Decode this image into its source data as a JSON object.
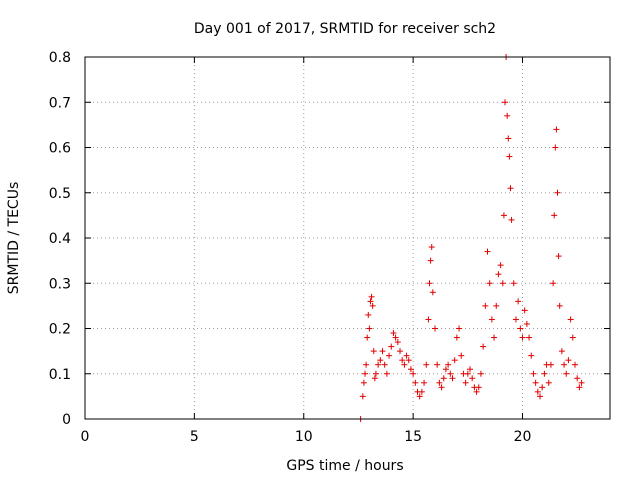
{
  "chart_data": {
    "type": "scatter",
    "title": "Day 001 of 2017, SRMTID for receiver sch2",
    "xlabel": "GPS time / hours",
    "ylabel": "SRMTID / TECUs",
    "xlim": [
      0,
      24
    ],
    "ylim": [
      0,
      0.8
    ],
    "xticks": [
      0,
      5,
      10,
      15,
      20
    ],
    "xtick_labels": [
      "0",
      "5",
      "10",
      "15",
      "20"
    ],
    "yticks": [
      0,
      0.1,
      0.2,
      0.3,
      0.4,
      0.5,
      0.6,
      0.7,
      0.8
    ],
    "ytick_labels": [
      "0",
      "0.1",
      "0.2",
      "0.3",
      "0.4",
      "0.5",
      "0.6",
      "0.7",
      "0.8"
    ],
    "grid": true,
    "marker": "plus",
    "series": [
      {
        "name": "sch2",
        "color": "#e00000",
        "points": [
          [
            12.6,
            0.0
          ],
          [
            12.7,
            0.05
          ],
          [
            12.75,
            0.08
          ],
          [
            12.8,
            0.1
          ],
          [
            12.85,
            0.12
          ],
          [
            12.9,
            0.18
          ],
          [
            12.95,
            0.23
          ],
          [
            13.0,
            0.2
          ],
          [
            13.05,
            0.26
          ],
          [
            13.1,
            0.27
          ],
          [
            13.15,
            0.25
          ],
          [
            13.2,
            0.15
          ],
          [
            13.25,
            0.09
          ],
          [
            13.3,
            0.1
          ],
          [
            13.4,
            0.12
          ],
          [
            13.5,
            0.13
          ],
          [
            13.6,
            0.15
          ],
          [
            13.7,
            0.12
          ],
          [
            13.8,
            0.1
          ],
          [
            13.9,
            0.14
          ],
          [
            14.0,
            0.16
          ],
          [
            14.1,
            0.19
          ],
          [
            14.2,
            0.18
          ],
          [
            14.3,
            0.17
          ],
          [
            14.4,
            0.15
          ],
          [
            14.5,
            0.13
          ],
          [
            14.6,
            0.12
          ],
          [
            14.7,
            0.14
          ],
          [
            14.8,
            0.13
          ],
          [
            14.9,
            0.11
          ],
          [
            15.0,
            0.1
          ],
          [
            15.1,
            0.08
          ],
          [
            15.2,
            0.06
          ],
          [
            15.3,
            0.05
          ],
          [
            15.4,
            0.06
          ],
          [
            15.5,
            0.08
          ],
          [
            15.6,
            0.12
          ],
          [
            15.7,
            0.22
          ],
          [
            15.75,
            0.3
          ],
          [
            15.8,
            0.35
          ],
          [
            15.85,
            0.38
          ],
          [
            15.9,
            0.28
          ],
          [
            16.0,
            0.2
          ],
          [
            16.1,
            0.12
          ],
          [
            16.2,
            0.08
          ],
          [
            16.3,
            0.07
          ],
          [
            16.4,
            0.09
          ],
          [
            16.5,
            0.11
          ],
          [
            16.6,
            0.12
          ],
          [
            16.7,
            0.1
          ],
          [
            16.8,
            0.09
          ],
          [
            16.9,
            0.13
          ],
          [
            17.0,
            0.18
          ],
          [
            17.1,
            0.2
          ],
          [
            17.2,
            0.14
          ],
          [
            17.3,
            0.1
          ],
          [
            17.4,
            0.08
          ],
          [
            17.5,
            0.1
          ],
          [
            17.6,
            0.11
          ],
          [
            17.7,
            0.09
          ],
          [
            17.8,
            0.07
          ],
          [
            17.9,
            0.06
          ],
          [
            18.0,
            0.07
          ],
          [
            18.1,
            0.1
          ],
          [
            18.2,
            0.16
          ],
          [
            18.3,
            0.25
          ],
          [
            18.4,
            0.37
          ],
          [
            18.5,
            0.3
          ],
          [
            18.6,
            0.22
          ],
          [
            18.7,
            0.18
          ],
          [
            18.8,
            0.25
          ],
          [
            18.9,
            0.32
          ],
          [
            19.0,
            0.34
          ],
          [
            19.1,
            0.3
          ],
          [
            19.15,
            0.45
          ],
          [
            19.2,
            0.7
          ],
          [
            19.25,
            0.8
          ],
          [
            19.3,
            0.67
          ],
          [
            19.35,
            0.62
          ],
          [
            19.4,
            0.58
          ],
          [
            19.45,
            0.51
          ],
          [
            19.5,
            0.44
          ],
          [
            19.6,
            0.3
          ],
          [
            19.7,
            0.22
          ],
          [
            19.8,
            0.26
          ],
          [
            19.9,
            0.2
          ],
          [
            20.0,
            0.18
          ],
          [
            20.1,
            0.24
          ],
          [
            20.2,
            0.21
          ],
          [
            20.3,
            0.18
          ],
          [
            20.4,
            0.14
          ],
          [
            20.5,
            0.1
          ],
          [
            20.6,
            0.08
          ],
          [
            20.7,
            0.06
          ],
          [
            20.8,
            0.05
          ],
          [
            20.9,
            0.07
          ],
          [
            21.0,
            0.1
          ],
          [
            21.1,
            0.12
          ],
          [
            21.2,
            0.08
          ],
          [
            21.3,
            0.12
          ],
          [
            21.4,
            0.3
          ],
          [
            21.45,
            0.45
          ],
          [
            21.5,
            0.6
          ],
          [
            21.55,
            0.64
          ],
          [
            21.6,
            0.5
          ],
          [
            21.65,
            0.36
          ],
          [
            21.7,
            0.25
          ],
          [
            21.8,
            0.15
          ],
          [
            21.9,
            0.12
          ],
          [
            22.0,
            0.1
          ],
          [
            22.1,
            0.13
          ],
          [
            22.2,
            0.22
          ],
          [
            22.3,
            0.18
          ],
          [
            22.4,
            0.12
          ],
          [
            22.5,
            0.09
          ],
          [
            22.6,
            0.07
          ],
          [
            22.7,
            0.08
          ]
        ]
      }
    ]
  }
}
